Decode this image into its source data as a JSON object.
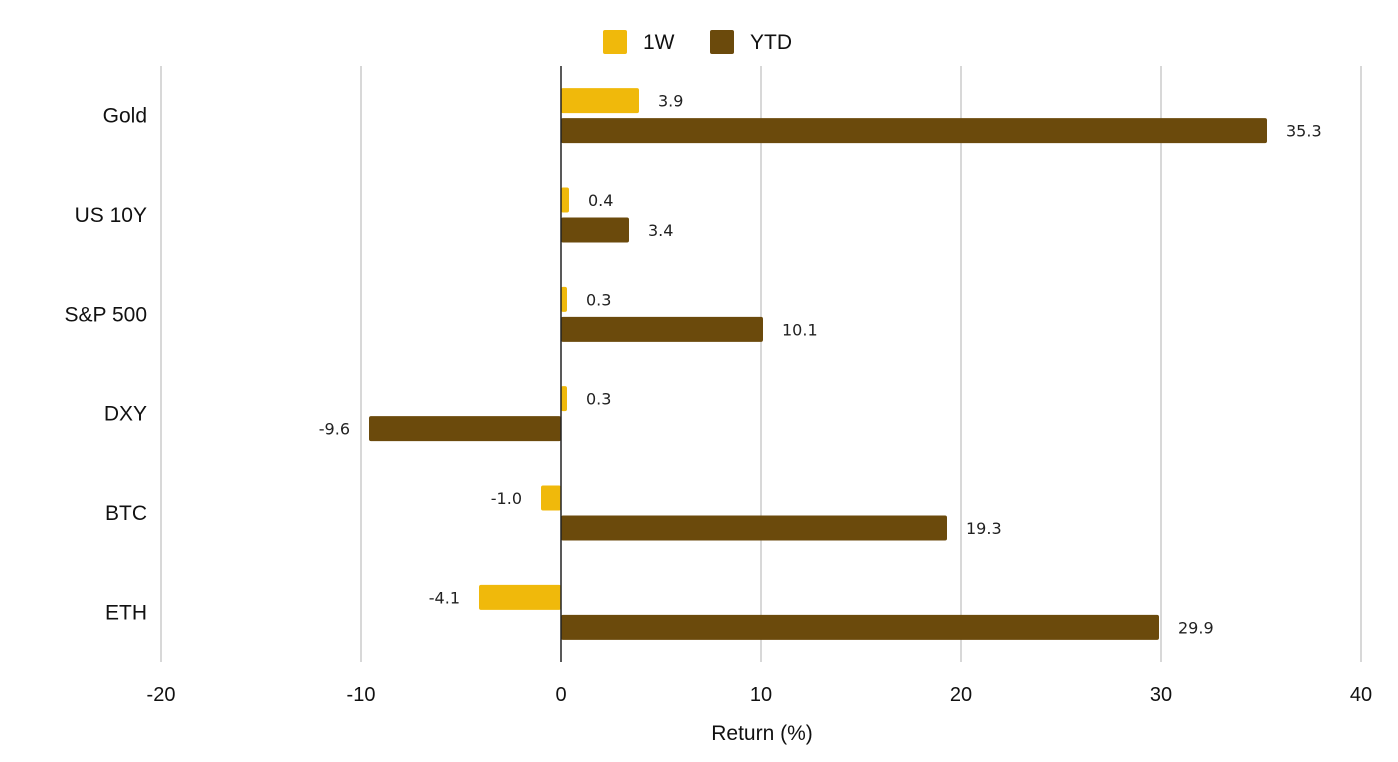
{
  "chart_data": {
    "type": "bar",
    "orientation": "horizontal",
    "categories": [
      "Gold",
      "US 10Y",
      "S&P 500",
      "DXY",
      "BTC",
      "ETH"
    ],
    "series": [
      {
        "name": "1W",
        "values": [
          3.9,
          0.4,
          0.3,
          0.3,
          -1.0,
          -4.1
        ],
        "color": "#F0B90B"
      },
      {
        "name": "YTD",
        "values": [
          35.3,
          3.4,
          10.1,
          -9.6,
          19.3,
          29.9
        ],
        "color": "#6B4A0C"
      }
    ],
    "xlabel": "Return (%)",
    "ylabel": "",
    "xlim": [
      -20,
      40
    ],
    "xticks": [
      -20,
      -10,
      0,
      10,
      20,
      30,
      40
    ],
    "grid": true,
    "legend_position": "top-center",
    "data_labels": true
  }
}
